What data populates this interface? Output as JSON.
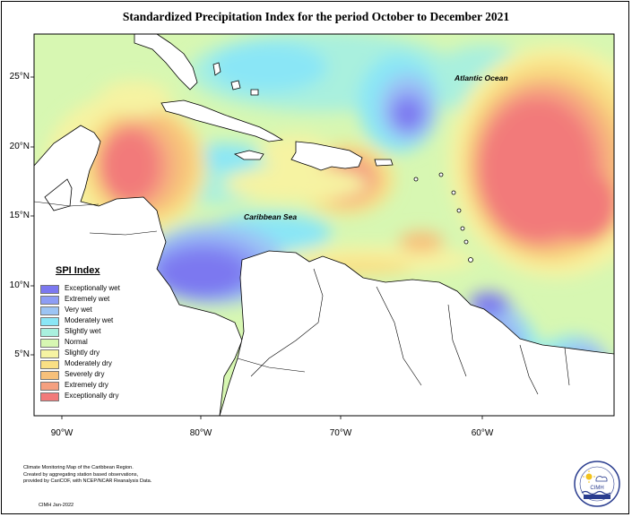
{
  "title": "Standardized Precipitation Index for the period October to December 2021",
  "axes": {
    "lat_ticks": [
      "25°N",
      "20°N",
      "15°N",
      "10°N",
      "5°N"
    ],
    "lon_ticks": [
      "90°W",
      "80°W",
      "70°W",
      "60°W"
    ]
  },
  "labels": {
    "atlantic": "Atlantic Ocean",
    "caribbean": "Caribbean Sea"
  },
  "legend": {
    "title": "SPI Index",
    "items": [
      {
        "label": "Exceptionally wet",
        "color": "#7b78f0"
      },
      {
        "label": "Extremely wet",
        "color": "#8d9df5"
      },
      {
        "label": "Very wet",
        "color": "#9cc4f4"
      },
      {
        "label": "Moderately wet",
        "color": "#8ae6f6"
      },
      {
        "label": "Slightly wet",
        "color": "#a9f0de"
      },
      {
        "label": "Normal",
        "color": "#d7f7b2"
      },
      {
        "label": "Slightly dry",
        "color": "#f6f3a2"
      },
      {
        "label": "Moderately dry",
        "color": "#f9df84"
      },
      {
        "label": "Severely dry",
        "color": "#f7c07a"
      },
      {
        "label": "Extremely dry",
        "color": "#f5a080"
      },
      {
        "label": "Exceptionally dry",
        "color": "#f27a7a"
      }
    ]
  },
  "credit": {
    "line1": "Climate Monitoring Map of the Caribbean Region.",
    "line2": "Created by aggregating station based observations,",
    "line3": "provided by CariCOF, with NCEP/NCAR Reanalysis Data."
  },
  "stamp": "CIMH Jan-2022",
  "logo_text": "CIMH"
}
